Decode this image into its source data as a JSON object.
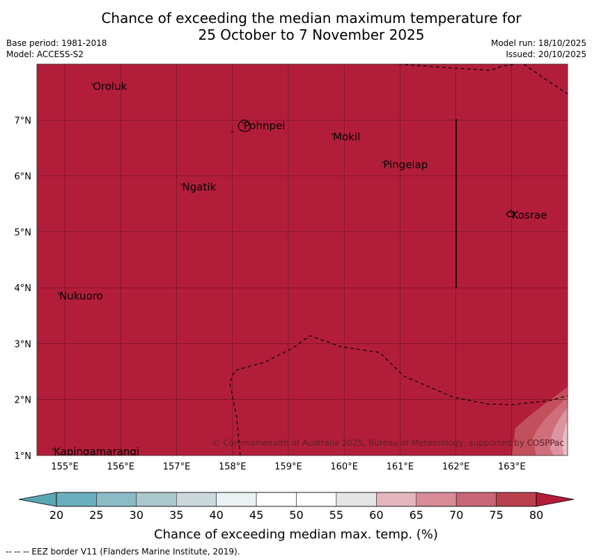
{
  "title_line1": "Chance of exceeding the median maximum temperature for",
  "title_line2": "25 October to 7 November 2025",
  "base_period": "Base period: 1981-2018",
  "model": "Model: ACCESS-S2",
  "model_run": "Model run: 18/10/2025",
  "issued": "Issued: 20/10/2025",
  "map": {
    "lon_range": [
      154.5,
      164.0
    ],
    "lat_range": [
      1.0,
      8.0
    ],
    "lon_ticks": [
      "155°E",
      "156°E",
      "157°E",
      "158°E",
      "159°E",
      "160°E",
      "161°E",
      "162°E",
      "163°E"
    ],
    "lat_ticks": [
      "1°N",
      "2°N",
      "3°N",
      "4°N",
      "5°N",
      "6°N",
      "7°N"
    ],
    "background_color": "#b21e3a",
    "islands": [
      {
        "name": "Oroluk",
        "lon": 155.5,
        "lat": 7.6
      },
      {
        "name": "Pohnpei",
        "lon": 158.2,
        "lat": 6.9
      },
      {
        "name": "Mokil",
        "lon": 159.8,
        "lat": 6.7
      },
      {
        "name": "Pingelap",
        "lon": 160.7,
        "lat": 6.2
      },
      {
        "name": "Ngatik",
        "lon": 157.1,
        "lat": 5.8
      },
      {
        "name": "Kosrae",
        "lon": 163.0,
        "lat": 5.3
      },
      {
        "name": "Nukuoro",
        "lon": 154.9,
        "lat": 3.85
      },
      {
        "name": "Kapingamarangi",
        "lon": 154.8,
        "lat": 1.07
      }
    ],
    "copyright": "© Commonwealth of Australia 2025, Bureau of Meteorology, supported by COSPPac"
  },
  "colorbar": {
    "ticks": [
      "20",
      "25",
      "30",
      "35",
      "40",
      "45",
      "50",
      "55",
      "60",
      "65",
      "70",
      "75",
      "80"
    ],
    "colors": [
      "#6aafbd",
      "#8bbcc6",
      "#abc9cc",
      "#cbd9dd",
      "#ecf1f4",
      "#ffffff",
      "#ffffff",
      "#e6e6e6",
      "#e4b7bf",
      "#d88c98",
      "#c96677",
      "#b9414f"
    ],
    "low_color": "#5aa6b4",
    "high_color": "#b21e3a",
    "label": "Chance of exceeding median max. temp. (%)"
  },
  "footer": "--  --  -- EEZ border V11 (Flanders Marine Institute, 2019)."
}
